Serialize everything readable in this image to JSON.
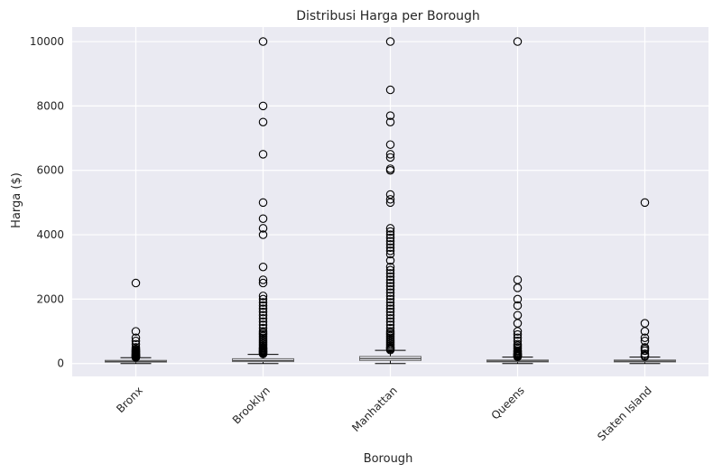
{
  "chart_data": {
    "type": "box",
    "title": "Distribusi Harga per Borough",
    "xlabel": "Borough",
    "ylabel": "Harga ($)",
    "ylim": [
      -400,
      10450
    ],
    "yticks": [
      0,
      2000,
      4000,
      6000,
      8000,
      10000
    ],
    "grid": true,
    "categories": [
      "Bronx",
      "Brooklyn",
      "Manhattan",
      "Queens",
      "Staten Island"
    ],
    "boxes": [
      {
        "category": "Bronx",
        "q1": 45,
        "median": 65,
        "q3": 99,
        "whisker_low": 0,
        "whisker_high": 180,
        "outliers": [
          190,
          200,
          210,
          225,
          240,
          250,
          260,
          275,
          290,
          300,
          320,
          340,
          360,
          380,
          400,
          425,
          450,
          500,
          600,
          700,
          800,
          1000,
          2500
        ]
      },
      {
        "category": "Brooklyn",
        "q1": 60,
        "median": 90,
        "q3": 150,
        "whisker_low": 0,
        "whisker_high": 285,
        "outliers": [
          300,
          320,
          340,
          360,
          380,
          400,
          425,
          450,
          475,
          500,
          550,
          600,
          650,
          700,
          750,
          800,
          850,
          900,
          950,
          1000,
          1100,
          1200,
          1300,
          1400,
          1500,
          1600,
          1700,
          1800,
          1900,
          2000,
          2100,
          2500,
          2600,
          3000,
          4000,
          4200,
          4500,
          5000,
          6500,
          7500,
          8000,
          10000
        ]
      },
      {
        "category": "Manhattan",
        "q1": 95,
        "median": 150,
        "q3": 220,
        "whisker_low": 0,
        "whisker_high": 410,
        "outliers": [
          420,
          450,
          480,
          500,
          550,
          600,
          650,
          700,
          750,
          800,
          850,
          900,
          950,
          1000,
          1100,
          1200,
          1300,
          1400,
          1500,
          1600,
          1700,
          1800,
          1900,
          2000,
          2100,
          2200,
          2300,
          2400,
          2500,
          2600,
          2700,
          2800,
          2900,
          3000,
          3200,
          3400,
          3500,
          3600,
          3700,
          3800,
          3900,
          4000,
          4100,
          4200,
          5000,
          5100,
          5250,
          6000,
          6050,
          6400,
          6500,
          6800,
          7500,
          7700,
          8500,
          10000
        ]
      },
      {
        "category": "Queens",
        "q1": 50,
        "median": 75,
        "q3": 110,
        "whisker_low": 0,
        "whisker_high": 200,
        "outliers": [
          210,
          225,
          240,
          250,
          260,
          275,
          290,
          300,
          320,
          350,
          380,
          400,
          450,
          500,
          550,
          600,
          700,
          800,
          900,
          1000,
          1250,
          1500,
          1800,
          2000,
          2350,
          2600,
          10000
        ]
      },
      {
        "category": "Staten Island",
        "q1": 50,
        "median": 75,
        "q3": 110,
        "whisker_low": 0,
        "whisker_high": 200,
        "outliers": [
          220,
          250,
          300,
          400,
          450,
          500,
          700,
          800,
          1000,
          1250,
          5000
        ]
      }
    ],
    "colors": {
      "background": "#eaeaf2",
      "grid": "#ffffff",
      "box": "#6a6a6a",
      "whisker": "#000000",
      "median": "#4a4a4a",
      "outlier": "#000000"
    }
  }
}
